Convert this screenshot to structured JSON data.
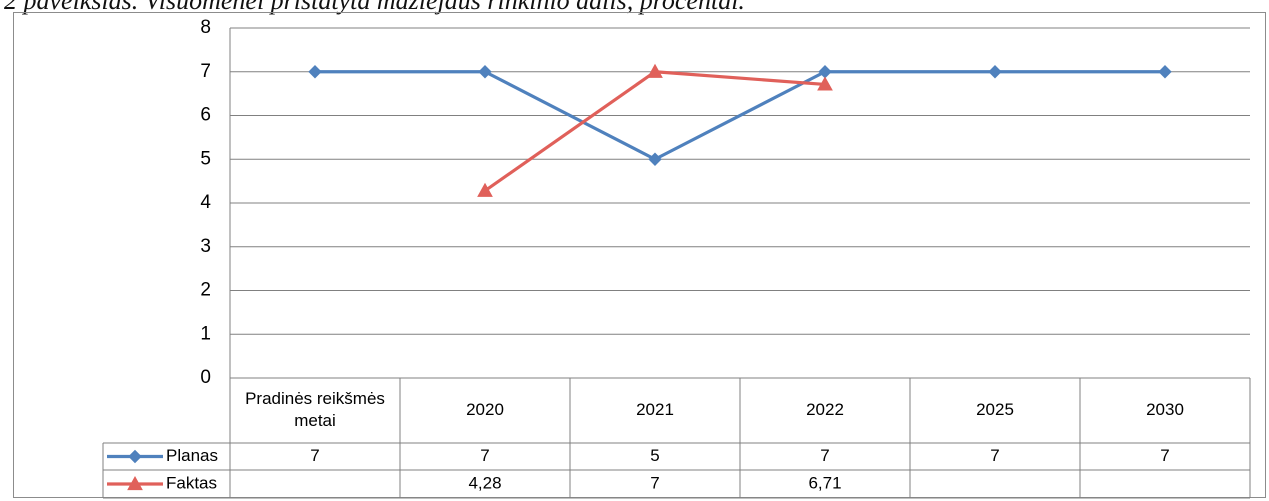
{
  "caption": "2 paveikslas. Visuomenei pristatyta mažiejaus rinkinio dalis, procentai.",
  "chart_data": {
    "type": "line",
    "categories": [
      "Pradinės reikšmės metai",
      "2020",
      "2021",
      "2022",
      "2025",
      "2030"
    ],
    "category_lines": [
      [
        "Pradinės reikšmės",
        "metai"
      ],
      [
        "2020"
      ],
      [
        "2021"
      ],
      [
        "2022"
      ],
      [
        "2025"
      ],
      [
        "2030"
      ]
    ],
    "ylim": [
      0,
      8
    ],
    "yticks": [
      "0",
      "1",
      "2",
      "3",
      "4",
      "5",
      "6",
      "7",
      "8"
    ],
    "grid": true,
    "series": [
      {
        "name": "Planas",
        "color": "#4f81bd",
        "marker": "diamond",
        "values": [
          7,
          7,
          5,
          7,
          7,
          7
        ],
        "labels": [
          "7",
          "7",
          "5",
          "7",
          "7",
          "7"
        ]
      },
      {
        "name": "Faktas",
        "color": "#e0605a",
        "marker": "triangle",
        "values": [
          null,
          4.28,
          7,
          6.71,
          null,
          null
        ],
        "labels": [
          "",
          "4,28",
          "7",
          "6,71",
          "",
          ""
        ]
      }
    ]
  }
}
